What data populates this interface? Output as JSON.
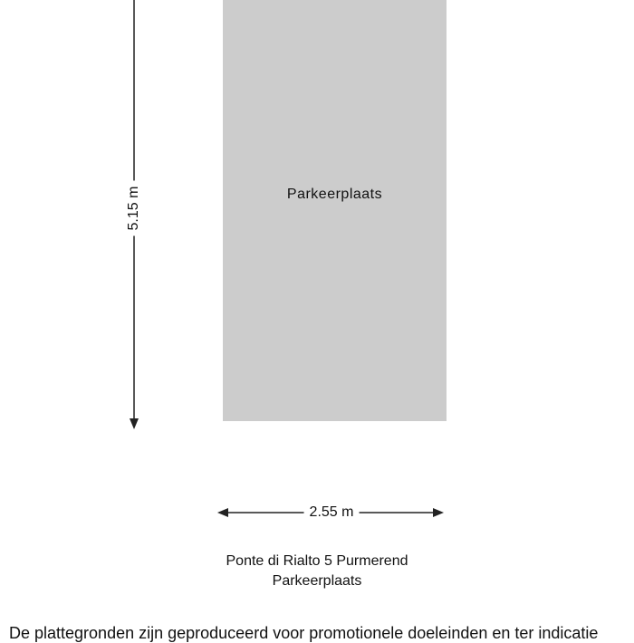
{
  "room": {
    "label": "Parkeerplaats",
    "fill": "#cccccc"
  },
  "dimensions": {
    "height": "5.15 m",
    "width": "2.55 m"
  },
  "caption": {
    "address": "Ponte di Rialto 5 Purmerend",
    "room_name": "Parkeerplaats"
  },
  "disclaimer": "De plattegronden zijn geproduceerd voor promotionele doeleinden en ter indicatie"
}
